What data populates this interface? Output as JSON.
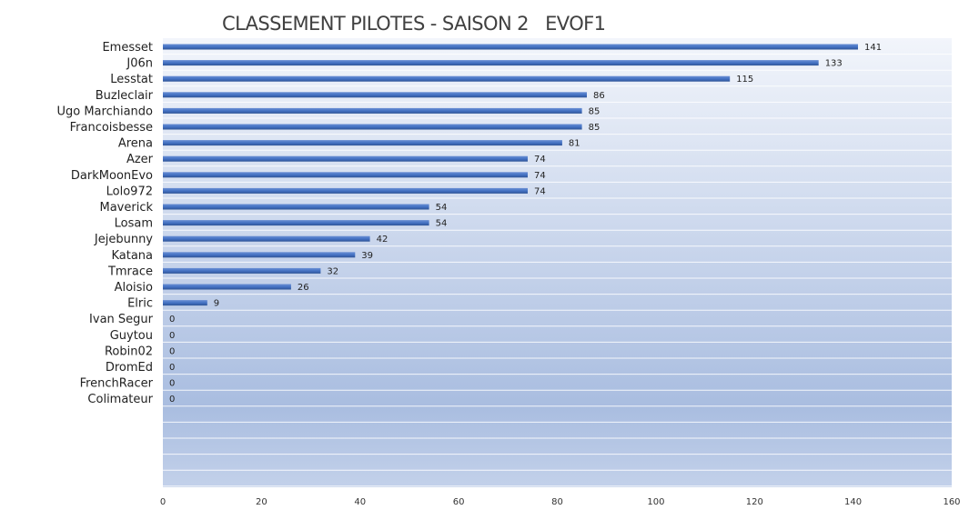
{
  "chart_data": {
    "type": "bar",
    "orientation": "horizontal",
    "title": "CLASSEMENT PILOTES - SAISON 2   EVOF1",
    "categories": [
      "Emesset",
      "J06n",
      "Lesstat",
      "Buzleclair",
      "Ugo Marchiando",
      "Francoisbesse",
      "Arena",
      "Azer",
      "DarkMoonEvo",
      "Lolo972",
      "Maverick",
      "Losam",
      "Jejebunny",
      "Katana",
      "Tmrace",
      "Aloisio",
      "Elric",
      "Ivan Segur",
      "Guytou",
      "Robin02",
      "DromEd",
      "FrenchRacer",
      "Colimateur"
    ],
    "values": [
      141,
      133,
      115,
      86,
      85,
      85,
      81,
      74,
      74,
      74,
      54,
      54,
      42,
      39,
      32,
      26,
      9,
      0,
      0,
      0,
      0,
      0,
      0
    ],
    "value_labels": [
      "141",
      "133",
      "115",
      "86",
      "85",
      "85",
      "81",
      "74",
      "74",
      "74",
      "54",
      "54",
      "42",
      "39",
      "32",
      "26",
      "9",
      "0",
      "0",
      "0",
      "0",
      "0",
      "0"
    ],
    "xlim": [
      0,
      160
    ],
    "x_ticks": [
      "0",
      "20",
      "40",
      "60",
      "80",
      "100",
      "120",
      "140",
      "160"
    ],
    "tick_values": [
      0,
      20,
      40,
      60,
      80,
      100,
      120,
      140,
      160
    ],
    "grid": true,
    "legend": "none",
    "colors": {
      "bar": "#4472c4",
      "bar_dark": "#2f5597",
      "plot_bg_top": "#f2f5fb",
      "plot_bg_bottom": "#a9bde0",
      "gridline": "#ffffff"
    }
  }
}
